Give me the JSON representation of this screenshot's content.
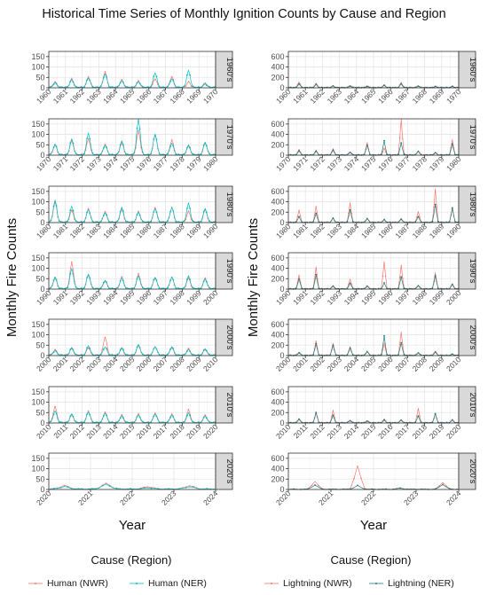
{
  "title": "Historical Time Series of Monthly Ignition Counts by Cause and Region",
  "colors": {
    "human_nwr": "#f8766d",
    "human_ner": "#00bfc4",
    "lightning_nwr": "#f8766d",
    "lightning_ner": "#1f7a7a",
    "strip_bg": "#d9d9d9",
    "grid": "#e6e6e6",
    "panel_border": "#333333"
  },
  "chart_data": [
    {
      "type": "line",
      "title": "",
      "ylabel": "Monthly Fire Counts",
      "xlabel": "Year",
      "grid": true,
      "legend": {
        "title": "Cause (Region)",
        "placement": "bottom",
        "entries": [
          "Human (NWR)",
          "Human (NER)"
        ]
      },
      "series": [
        {
          "name": "Human (NWR)",
          "peak_month": 4
        },
        {
          "name": "Human (NER)",
          "peak_month": 4
        }
      ],
      "facets": [
        {
          "label": "1960's",
          "x_range": [
            1960,
            1970
          ],
          "xticks": [
            "1960",
            "1961",
            "1962",
            "1963",
            "1964",
            "1965",
            "1966",
            "1967",
            "1968",
            "1969",
            "1970"
          ],
          "ylim": [
            0,
            175
          ],
          "yticks": [
            0,
            50,
            100,
            150
          ],
          "peaks_nwr": [
            30,
            45,
            55,
            80,
            40,
            35,
            45,
            55,
            30,
            25
          ],
          "peaks_ner": [
            25,
            40,
            50,
            70,
            35,
            30,
            75,
            45,
            85,
            20
          ]
        },
        {
          "label": "1970's",
          "x_range": [
            1970,
            1980
          ],
          "xticks": [
            "1970",
            "1971",
            "1972",
            "1973",
            "1974",
            "1975",
            "1976",
            "1977",
            "1978",
            "1979",
            "1980"
          ],
          "ylim": [
            0,
            175
          ],
          "yticks": [
            0,
            50,
            100,
            150
          ],
          "peaks_nwr": [
            50,
            70,
            80,
            55,
            60,
            120,
            100,
            75,
            45,
            60
          ],
          "peaks_ner": [
            55,
            80,
            110,
            50,
            70,
            175,
            105,
            60,
            50,
            65
          ]
        },
        {
          "label": "1980's",
          "x_range": [
            1980,
            1990
          ],
          "xticks": [
            "1980",
            "1981",
            "1982",
            "1983",
            "1984",
            "1985",
            "1986",
            "1987",
            "1988",
            "1989",
            "1990"
          ],
          "ylim": [
            0,
            175
          ],
          "yticks": [
            0,
            50,
            100,
            150
          ],
          "peaks_nwr": [
            100,
            60,
            70,
            55,
            65,
            55,
            75,
            75,
            55,
            65
          ],
          "peaks_ner": [
            110,
            80,
            65,
            50,
            75,
            50,
            70,
            75,
            95,
            70
          ]
        },
        {
          "label": "1990's",
          "x_range": [
            1990,
            2000
          ],
          "xticks": [
            "1990",
            "1991",
            "1992",
            "1993",
            "1994",
            "1995",
            "1996",
            "1997",
            "1998",
            "1999",
            "2000"
          ],
          "ylim": [
            0,
            175
          ],
          "yticks": [
            0,
            50,
            100,
            150
          ],
          "peaks_nwr": [
            55,
            130,
            70,
            40,
            60,
            75,
            55,
            60,
            55,
            55
          ],
          "peaks_ner": [
            60,
            100,
            75,
            45,
            55,
            65,
            60,
            60,
            65,
            50
          ]
        },
        {
          "label": "2000's",
          "x_range": [
            2000,
            2010
          ],
          "xticks": [
            "2000",
            "2001",
            "2002",
            "2003",
            "2004",
            "2005",
            "2006",
            "2007",
            "2008",
            "2009",
            "2010"
          ],
          "ylim": [
            0,
            175
          ],
          "yticks": [
            0,
            50,
            100,
            150
          ],
          "peaks_nwr": [
            30,
            35,
            40,
            90,
            35,
            50,
            45,
            40,
            35,
            30
          ],
          "peaks_ner": [
            25,
            40,
            50,
            45,
            40,
            55,
            45,
            45,
            30,
            35
          ]
        },
        {
          "label": "2010's",
          "x_range": [
            2010,
            2020
          ],
          "xticks": [
            "2010",
            "2011",
            "2012",
            "2013",
            "2014",
            "2015",
            "2016",
            "2017",
            "2018",
            "2019",
            "2020"
          ],
          "ylim": [
            0,
            175
          ],
          "yticks": [
            0,
            50,
            100,
            150
          ],
          "peaks_nwr": [
            80,
            40,
            60,
            55,
            40,
            45,
            50,
            45,
            65,
            40
          ],
          "peaks_ner": [
            60,
            45,
            55,
            50,
            35,
            40,
            45,
            40,
            50,
            35
          ]
        },
        {
          "label": "2020's",
          "x_range": [
            2020,
            2024
          ],
          "xticks": [
            "2020",
            "2021",
            "2022",
            "2023",
            "2024"
          ],
          "ylim": [
            0,
            175
          ],
          "yticks": [
            0,
            50,
            100,
            150
          ],
          "peaks_nwr": [
            20,
            30,
            15,
            20
          ],
          "peaks_ner": [
            15,
            25,
            10,
            15
          ]
        }
      ]
    },
    {
      "type": "line",
      "title": "",
      "ylabel": "Monthly Fire Counts",
      "xlabel": "Year",
      "grid": true,
      "legend": {
        "title": "Cause (Region)",
        "placement": "bottom",
        "entries": [
          "Lightning (NWR)",
          "Lightning (NER)"
        ]
      },
      "series": [
        {
          "name": "Lightning (NWR)",
          "peak_month": 7
        },
        {
          "name": "Lightning (NER)",
          "peak_month": 7
        }
      ],
      "facets": [
        {
          "label": "1960's",
          "x_range": [
            1960,
            1970
          ],
          "xticks": [
            "1960",
            "1961",
            "1962",
            "1963",
            "1964",
            "1965",
            "1966",
            "1967",
            "1968",
            "1969",
            "1970"
          ],
          "ylim": [
            0,
            700
          ],
          "yticks": [
            0,
            200,
            400,
            600
          ],
          "peaks_nwr": [
            120,
            90,
            40,
            50,
            40,
            60,
            110,
            40,
            30,
            30
          ],
          "peaks_ner": [
            80,
            70,
            40,
            40,
            30,
            50,
            80,
            40,
            30,
            30
          ]
        },
        {
          "label": "1970's",
          "x_range": [
            1970,
            1980
          ],
          "xticks": [
            "1970",
            "1971",
            "1972",
            "1973",
            "1974",
            "1975",
            "1976",
            "1977",
            "1978",
            "1979",
            "1980"
          ],
          "ylim": [
            0,
            700
          ],
          "yticks": [
            0,
            200,
            400,
            600
          ],
          "peaks_nwr": [
            120,
            100,
            130,
            70,
            250,
            140,
            700,
            90,
            60,
            300
          ],
          "peaks_ner": [
            90,
            80,
            100,
            60,
            200,
            280,
            240,
            80,
            50,
            220
          ]
        },
        {
          "label": "1980's",
          "x_range": [
            1980,
            1990
          ],
          "xticks": [
            "1980",
            "1981",
            "1982",
            "1983",
            "1984",
            "1985",
            "1986",
            "1987",
            "1988",
            "1989",
            "1990"
          ],
          "ylim": [
            0,
            700
          ],
          "yticks": [
            0,
            200,
            400,
            600
          ],
          "peaks_nwr": [
            250,
            320,
            90,
            390,
            90,
            60,
            80,
            220,
            650,
            300
          ],
          "peaks_ner": [
            120,
            180,
            90,
            250,
            80,
            60,
            70,
            120,
            350,
            280
          ]
        },
        {
          "label": "1990's",
          "x_range": [
            1990,
            2000
          ],
          "xticks": [
            "1990",
            "1991",
            "1992",
            "1993",
            "1994",
            "1995",
            "1996",
            "1997",
            "1998",
            "1999",
            "2000"
          ],
          "ylim": [
            0,
            700
          ],
          "yticks": [
            0,
            200,
            400,
            600
          ],
          "peaks_nwr": [
            280,
            430,
            70,
            200,
            70,
            530,
            470,
            80,
            320,
            110
          ],
          "peaks_ner": [
            200,
            280,
            60,
            120,
            60,
            120,
            240,
            70,
            260,
            90
          ]
        },
        {
          "label": "2000's",
          "x_range": [
            2000,
            2010
          ],
          "xticks": [
            "2000",
            "2001",
            "2002",
            "2003",
            "2004",
            "2005",
            "2006",
            "2007",
            "2008",
            "2009",
            "2010"
          ],
          "ylim": [
            0,
            700
          ],
          "yticks": [
            0,
            200,
            400,
            600
          ],
          "peaks_nwr": [
            70,
            290,
            240,
            180,
            90,
            240,
            460,
            60,
            90,
            30
          ],
          "peaks_ner": [
            60,
            230,
            200,
            150,
            80,
            380,
            250,
            60,
            70,
            30
          ]
        },
        {
          "label": "2010's",
          "x_range": [
            2010,
            2020
          ],
          "xticks": [
            "2010",
            "2011",
            "2012",
            "2013",
            "2014",
            "2015",
            "2016",
            "2017",
            "2018",
            "2019",
            "2020"
          ],
          "ylim": [
            0,
            700
          ],
          "yticks": [
            0,
            200,
            400,
            600
          ],
          "peaks_nwr": [
            90,
            220,
            250,
            60,
            50,
            80,
            70,
            290,
            190,
            70
          ],
          "peaks_ner": [
            80,
            200,
            150,
            50,
            40,
            60,
            60,
            140,
            180,
            60
          ]
        },
        {
          "label": "2020's",
          "x_range": [
            2020,
            2024
          ],
          "xticks": [
            "2020",
            "2021",
            "2022",
            "2023",
            "2024"
          ],
          "ylim": [
            0,
            700
          ],
          "yticks": [
            0,
            200,
            400,
            600
          ],
          "peaks_nwr": [
            160,
            460,
            30,
            140
          ],
          "peaks_ner": [
            90,
            80,
            30,
            100
          ]
        }
      ]
    }
  ]
}
